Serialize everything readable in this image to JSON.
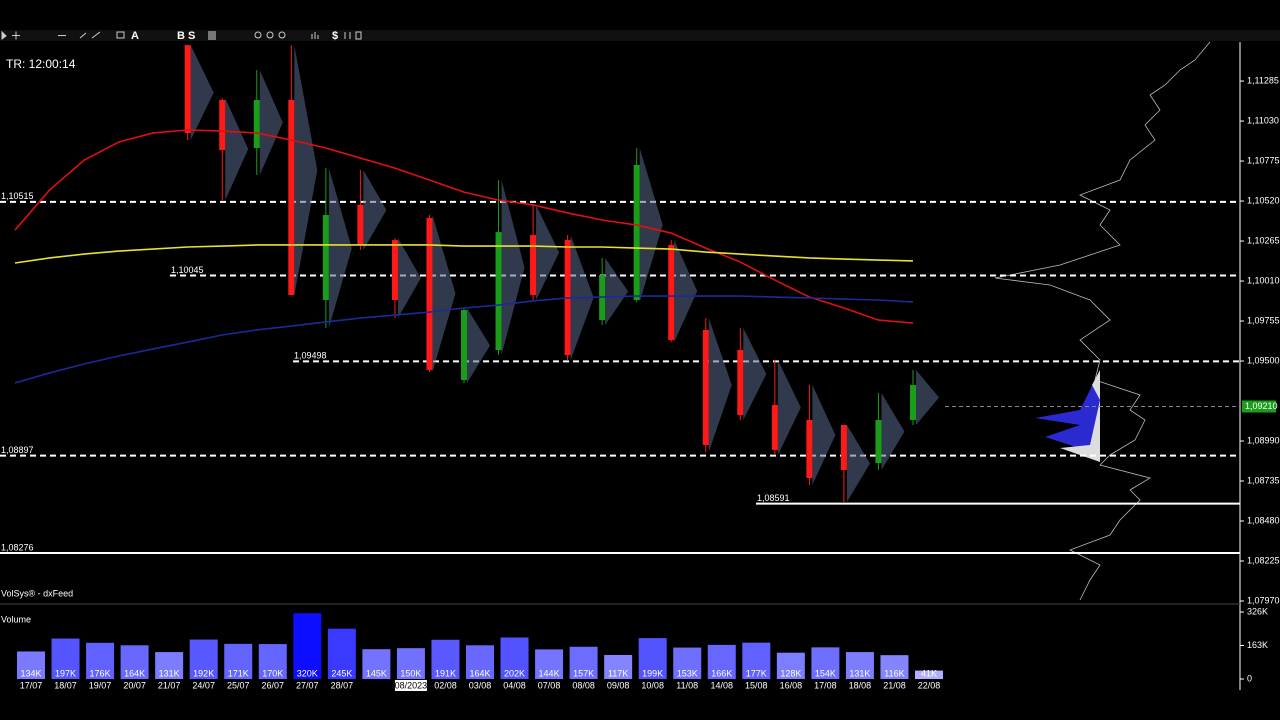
{
  "toolbar": [
    "A",
    "B",
    "S",
    "$"
  ],
  "timer": "TR: 12:00:14",
  "feed": "VolSys® - dxFeed",
  "chart_data": [
    {
      "type": "candlestick",
      "ylim": [
        1.0797,
        1.11534
      ],
      "yticks": [
        {
          "value": 1.11285,
          "label": "1,11285"
        },
        {
          "value": 1.1103,
          "label": "1,11030"
        },
        {
          "value": 1.10775,
          "label": "1,10775"
        },
        {
          "value": 1.1052,
          "label": "1,10520"
        },
        {
          "value": 1.10265,
          "label": "1,10265"
        },
        {
          "value": 1.1001,
          "label": "1,10010"
        },
        {
          "value": 1.09755,
          "label": "1,09755"
        },
        {
          "value": 1.095,
          "label": "1,09500"
        },
        {
          "value": 1.0899,
          "label": "1,08990"
        },
        {
          "value": 1.08735,
          "label": "1,08735"
        },
        {
          "value": 1.0848,
          "label": "1,08480"
        },
        {
          "value": 1.08225,
          "label": "1,08225"
        },
        {
          "value": 1.0797,
          "label": "1,07970"
        }
      ],
      "open": [
        null,
        null,
        null,
        null,
        null,
        1.11514,
        1.11164,
        1.10858,
        1.11164,
        1.09889,
        1.10495,
        1.10271,
        1.10412,
        1.09379,
        1.0957,
        1.10303,
        1.10271,
        1.09761,
        1.09889,
        1.1024,
        1.09698,
        1.0957,
        1.0922,
        1.09124,
        1.09092,
        1.0885,
        1.09124
      ],
      "high": [
        null,
        null,
        null,
        null,
        null,
        1.11514,
        1.11177,
        1.11355,
        1.11514,
        1.1073,
        1.10718,
        1.10284,
        1.10431,
        1.09838,
        1.10654,
        1.10495,
        1.10303,
        1.10157,
        1.10858,
        1.10271,
        1.09774,
        1.0971,
        1.09506,
        1.09347,
        1.09092,
        1.09296,
        1.09443
      ],
      "low": [
        null,
        null,
        null,
        null,
        null,
        1.10909,
        1.10526,
        1.10686,
        1.09921,
        1.0971,
        1.10208,
        1.09774,
        1.0943,
        1.0936,
        1.09538,
        1.09889,
        1.09506,
        1.0973,
        1.09876,
        1.09621,
        1.0892,
        1.09124,
        1.08901,
        1.0871,
        1.08601,
        1.08805,
        1.09092
      ],
      "close": [
        null,
        null,
        null,
        null,
        null,
        1.10954,
        1.10845,
        1.11164,
        1.09921,
        1.10431,
        1.1024,
        1.09889,
        1.09443,
        1.09825,
        1.10322,
        1.09921,
        1.09538,
        1.10048,
        1.1075,
        1.09634,
        1.08965,
        1.09156,
        1.08933,
        1.08754,
        1.08805,
        1.09124,
        1.09347
      ],
      "up_color": "#1a9e1a",
      "down_color": "#ff1a1a",
      "series": [
        {
          "color": "#e01010",
          "values": [
            1.10335,
            1.1059,
            1.10781,
            1.10896,
            1.10954,
            1.10973,
            1.10966,
            1.10954,
            1.10909,
            1.10858,
            1.10794,
            1.1073,
            1.10654,
            1.10577,
            1.10526,
            1.10495,
            1.10444,
            1.10399,
            1.10367,
            1.10316,
            1.1022,
            1.10131,
            1.10016,
            1.09908,
            1.09838,
            1.09761,
            1.09742
          ]
        },
        {
          "color": "#e8e030",
          "values": [
            1.10125,
            1.10157,
            1.10182,
            1.10201,
            1.10214,
            1.10227,
            1.10233,
            1.1024,
            1.1024,
            1.1024,
            1.1024,
            1.1024,
            1.1024,
            1.10233,
            1.10233,
            1.10233,
            1.10227,
            1.10227,
            1.1022,
            1.10214,
            1.10195,
            1.10182,
            1.10169,
            1.10157,
            1.1015,
            1.10144,
            1.10138
          ]
        },
        {
          "color": "#1a2a9a",
          "values": [
            1.0936,
            1.09424,
            1.09481,
            1.09532,
            1.09577,
            1.09621,
            1.09666,
            1.09698,
            1.09723,
            1.09749,
            1.09774,
            1.09793,
            1.09812,
            1.09838,
            1.09857,
            1.09883,
            1.09902,
            1.09908,
            1.09914,
            1.09914,
            1.09914,
            1.09914,
            1.09908,
            1.09902,
            1.09895,
            1.09889,
            1.09876
          ]
        }
      ],
      "levels": [
        {
          "value": 1.10515,
          "label": "1,10515",
          "style": "dashed"
        },
        {
          "value": 1.10045,
          "label": "1,10045",
          "style": "dashed"
        },
        {
          "value": 1.09498,
          "label": "1,09498",
          "style": "dashed"
        },
        {
          "value": 1.08897,
          "label": "1,08897",
          "style": "dashed"
        },
        {
          "value": 1.08591,
          "label": "1,08591",
          "style": "solid"
        },
        {
          "value": 1.08276,
          "label": "1,08276",
          "style": "solid"
        }
      ],
      "current_price": {
        "value": 1.0921,
        "label": "1,09210"
      }
    },
    {
      "type": "bar",
      "title": "Volume",
      "categories": [
        "17/07",
        "18/07",
        "19/07",
        "20/07",
        "21/07",
        "24/07",
        "25/07",
        "26/07",
        "27/07",
        "28/07",
        null,
        "08/2023",
        "02/08",
        "03/08",
        "04/08",
        "07/08",
        "08/08",
        "09/08",
        "10/08",
        "11/08",
        "14/08",
        "15/08",
        "16/08",
        "17/08",
        "18/08",
        "21/08",
        "22/08"
      ],
      "values": [
        134000,
        197000,
        176000,
        164000,
        131000,
        192000,
        171000,
        170000,
        320000,
        245000,
        145000,
        150000,
        191000,
        164000,
        202000,
        144000,
        157000,
        117000,
        199000,
        153000,
        166000,
        177000,
        128000,
        154000,
        131000,
        116000,
        41000
      ],
      "value_labels": [
        "134K",
        "197K",
        "176K",
        "164K",
        "131K",
        "192K",
        "171K",
        "170K",
        "320K",
        "245K",
        "145K",
        "150K",
        "191K",
        "164K",
        "202K",
        "144K",
        "157K",
        "117K",
        "199K",
        "153K",
        "166K",
        "177K",
        "128K",
        "154K",
        "131K",
        "116K",
        "41K"
      ],
      "ylim": [
        0,
        326000
      ],
      "yticks": [
        0,
        {
          "value": 163000,
          "label": "163K"
        },
        {
          "value": 326000,
          "label": "326K"
        }
      ]
    }
  ]
}
